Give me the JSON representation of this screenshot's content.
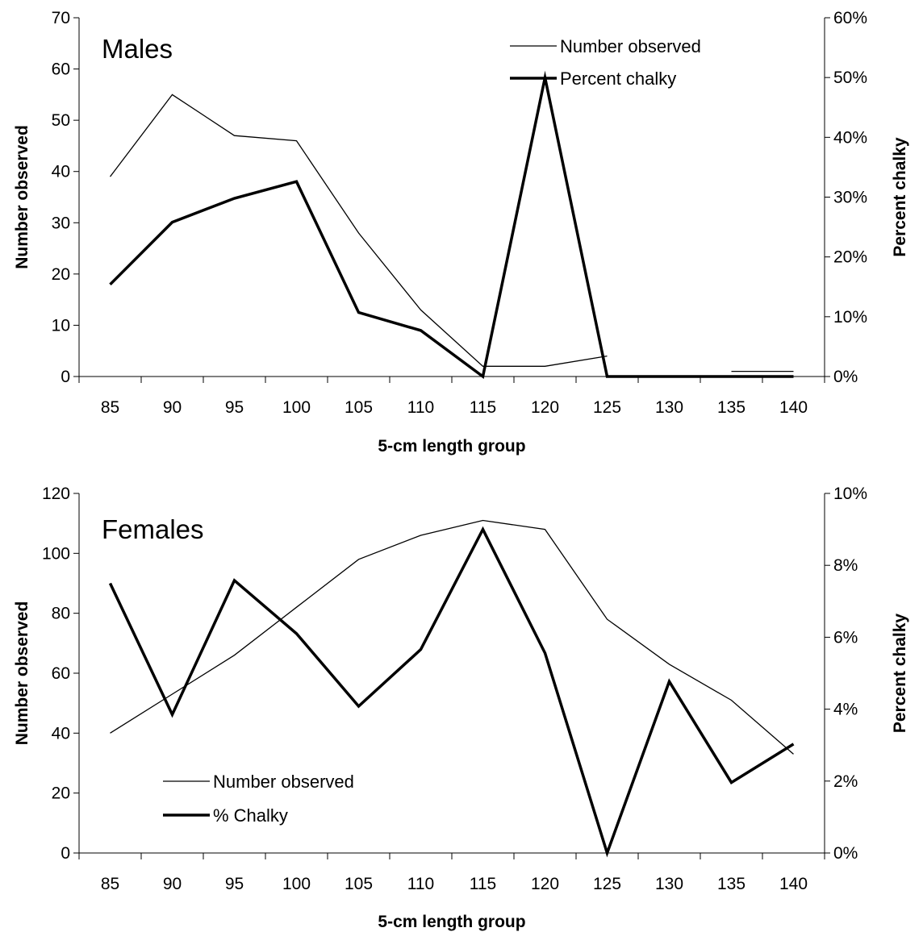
{
  "chart_data": [
    {
      "type": "line",
      "panel_label": "Males",
      "categories": [
        "85",
        "90",
        "95",
        "100",
        "105",
        "110",
        "115",
        "120",
        "125",
        "130",
        "135",
        "140"
      ],
      "xlabel": "5-cm length group",
      "ylabel_left": "Number observed",
      "ylabel_right": "Percent chalky",
      "ylim_left": [
        0,
        70
      ],
      "yticks_left": [
        "0",
        "10",
        "20",
        "30",
        "40",
        "50",
        "60",
        "70"
      ],
      "ylim_right": [
        0,
        0.6
      ],
      "yticks_right": [
        "0%",
        "10%",
        "20%",
        "30%",
        "40%",
        "50%",
        "60%"
      ],
      "legend": {
        "position": "top-right"
      },
      "series": [
        {
          "name": "Number observed",
          "axis": "left",
          "style": "thin",
          "values": [
            39,
            55,
            47,
            46,
            28,
            13,
            2,
            2,
            4,
            null,
            1,
            1
          ]
        },
        {
          "name": "Percent chalky",
          "axis": "right",
          "style": "thick",
          "values": [
            0.154,
            0.258,
            0.298,
            0.326,
            0.107,
            0.077,
            0.0,
            0.5,
            0.0,
            0.0,
            0.0,
            0.0
          ]
        }
      ]
    },
    {
      "type": "line",
      "panel_label": "Females",
      "categories": [
        "85",
        "90",
        "95",
        "100",
        "105",
        "110",
        "115",
        "120",
        "125",
        "130",
        "135",
        "140"
      ],
      "xlabel": "5-cm length group",
      "ylabel_left": "Number observed",
      "ylabel_right": "Percent chalky",
      "ylim_left": [
        0,
        120
      ],
      "yticks_left": [
        "0",
        "20",
        "40",
        "60",
        "80",
        "100",
        "120"
      ],
      "ylim_right": [
        0,
        0.1
      ],
      "yticks_right": [
        "0%",
        "2%",
        "4%",
        "6%",
        "8%",
        "10%"
      ],
      "legend": {
        "position": "bottom-left"
      },
      "series": [
        {
          "name": "Number observed",
          "axis": "left",
          "style": "thin",
          "values": [
            40,
            53,
            66,
            82,
            98,
            106,
            111,
            108,
            78,
            63,
            51,
            33
          ]
        },
        {
          "name": "% Chalky",
          "axis": "right",
          "style": "thick",
          "values": [
            0.075,
            0.0385,
            0.0758,
            0.061,
            0.0408,
            0.0566,
            0.09,
            0.0556,
            0.0,
            0.0477,
            0.0196,
            0.0303
          ]
        }
      ]
    }
  ]
}
